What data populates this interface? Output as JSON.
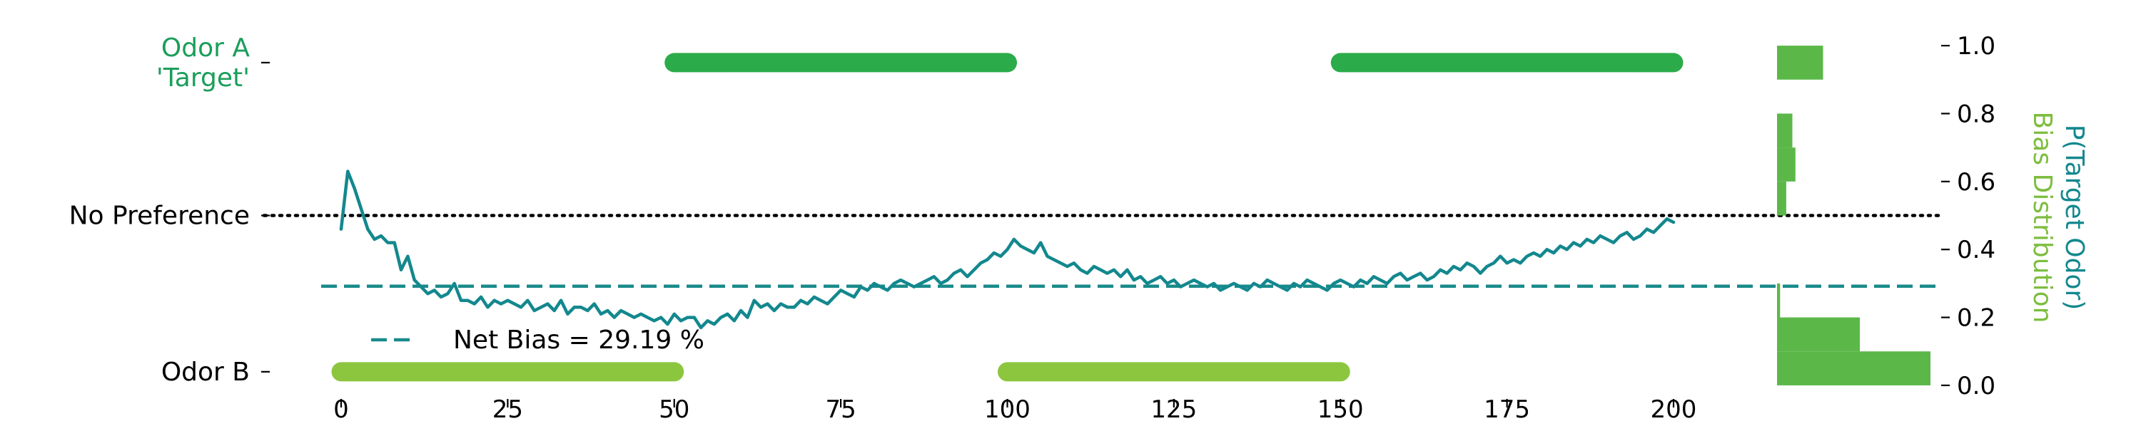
{
  "chart_data": {
    "type": "line",
    "x_ticks": [
      0,
      25,
      50,
      75,
      100,
      125,
      150,
      175,
      200
    ],
    "xlim": [
      -3,
      200
    ],
    "y_right": {
      "label_outer": "P(Target Odor)",
      "label_inner": "Bias Distribution",
      "ticks": [
        "0.0",
        "0.2",
        "0.4",
        "0.6",
        "0.8",
        "1.0"
      ],
      "tick_values": [
        0.0,
        0.2,
        0.4,
        0.6,
        0.8,
        1.0
      ],
      "ylim": [
        -0.04,
        1.04
      ]
    },
    "y_left": {
      "labels": [
        {
          "text": "Odor A\n'Target'",
          "value": 0.95,
          "color": "#1b9e5a"
        },
        {
          "text": "No Preference",
          "value": 0.5,
          "color": "#000000"
        },
        {
          "text": "Odor B",
          "value": 0.04,
          "color": "#000000"
        }
      ]
    },
    "odor_blocks": [
      {
        "odor": "A",
        "start": 50,
        "end": 100,
        "level": 0.95,
        "color": "#2bab4a"
      },
      {
        "odor": "B",
        "start": 0,
        "end": 50,
        "level": 0.04,
        "color": "#8cc63f"
      },
      {
        "odor": "A",
        "start": 150,
        "end": 200,
        "level": 0.95,
        "color": "#2bab4a"
      },
      {
        "odor": "B",
        "start": 100,
        "end": 150,
        "level": 0.04,
        "color": "#8cc63f"
      }
    ],
    "no_preference_line": 0.5,
    "net_bias": {
      "value": 0.2919,
      "label": "Net Bias = 29.19 %",
      "color": "#1a8a8a"
    },
    "series": [
      {
        "color": "#13888e",
        "x_start": 0,
        "values": [
          0.46,
          0.63,
          0.58,
          0.52,
          0.46,
          0.43,
          0.44,
          0.42,
          0.42,
          0.34,
          0.38,
          0.31,
          0.29,
          0.27,
          0.28,
          0.26,
          0.27,
          0.3,
          0.25,
          0.25,
          0.24,
          0.26,
          0.23,
          0.25,
          0.24,
          0.25,
          0.24,
          0.23,
          0.25,
          0.22,
          0.23,
          0.24,
          0.22,
          0.25,
          0.21,
          0.23,
          0.23,
          0.22,
          0.24,
          0.21,
          0.22,
          0.2,
          0.22,
          0.21,
          0.2,
          0.21,
          0.2,
          0.19,
          0.2,
          0.18,
          0.21,
          0.19,
          0.2,
          0.2,
          0.17,
          0.19,
          0.18,
          0.2,
          0.21,
          0.19,
          0.22,
          0.2,
          0.25,
          0.23,
          0.24,
          0.22,
          0.24,
          0.23,
          0.23,
          0.25,
          0.24,
          0.26,
          0.25,
          0.24,
          0.26,
          0.28,
          0.27,
          0.26,
          0.29,
          0.28,
          0.3,
          0.29,
          0.28,
          0.3,
          0.31,
          0.3,
          0.29,
          0.3,
          0.31,
          0.32,
          0.3,
          0.31,
          0.33,
          0.34,
          0.32,
          0.34,
          0.36,
          0.37,
          0.39,
          0.38,
          0.4,
          0.43,
          0.41,
          0.4,
          0.39,
          0.42,
          0.38,
          0.37,
          0.36,
          0.35,
          0.36,
          0.34,
          0.33,
          0.35,
          0.34,
          0.33,
          0.34,
          0.32,
          0.34,
          0.31,
          0.32,
          0.3,
          0.31,
          0.32,
          0.3,
          0.31,
          0.29,
          0.3,
          0.31,
          0.3,
          0.29,
          0.3,
          0.28,
          0.29,
          0.3,
          0.29,
          0.28,
          0.3,
          0.29,
          0.31,
          0.3,
          0.29,
          0.28,
          0.3,
          0.29,
          0.31,
          0.3,
          0.29,
          0.28,
          0.3,
          0.31,
          0.3,
          0.29,
          0.31,
          0.3,
          0.32,
          0.31,
          0.3,
          0.32,
          0.33,
          0.31,
          0.32,
          0.33,
          0.31,
          0.32,
          0.34,
          0.33,
          0.35,
          0.34,
          0.36,
          0.35,
          0.33,
          0.35,
          0.36,
          0.38,
          0.36,
          0.37,
          0.36,
          0.38,
          0.39,
          0.38,
          0.4,
          0.39,
          0.41,
          0.4,
          0.42,
          0.41,
          0.43,
          0.42,
          0.44,
          0.43,
          0.42,
          0.44,
          0.45,
          0.43,
          0.44,
          0.46,
          0.45,
          0.47,
          0.49,
          0.48
        ]
      }
    ],
    "legend": {
      "location": "lower-left",
      "entries": [
        "Net Bias = 29.19 %"
      ]
    },
    "bias_distribution": {
      "type": "horizontal-histogram",
      "color": "#5bb848",
      "bins": [
        {
          "range": [
            0.0,
            0.1
          ],
          "count": 100
        },
        {
          "range": [
            0.1,
            0.2
          ],
          "count": 54
        },
        {
          "range": [
            0.2,
            0.3
          ],
          "count": 2
        },
        {
          "range": [
            0.5,
            0.6
          ],
          "count": 6
        },
        {
          "range": [
            0.6,
            0.7
          ],
          "count": 12
        },
        {
          "range": [
            0.7,
            0.8
          ],
          "count": 10
        },
        {
          "range": [
            0.8,
            0.9
          ],
          "count": 0
        },
        {
          "range": [
            0.9,
            1.0
          ],
          "count": 30
        }
      ]
    },
    "grid": false
  }
}
